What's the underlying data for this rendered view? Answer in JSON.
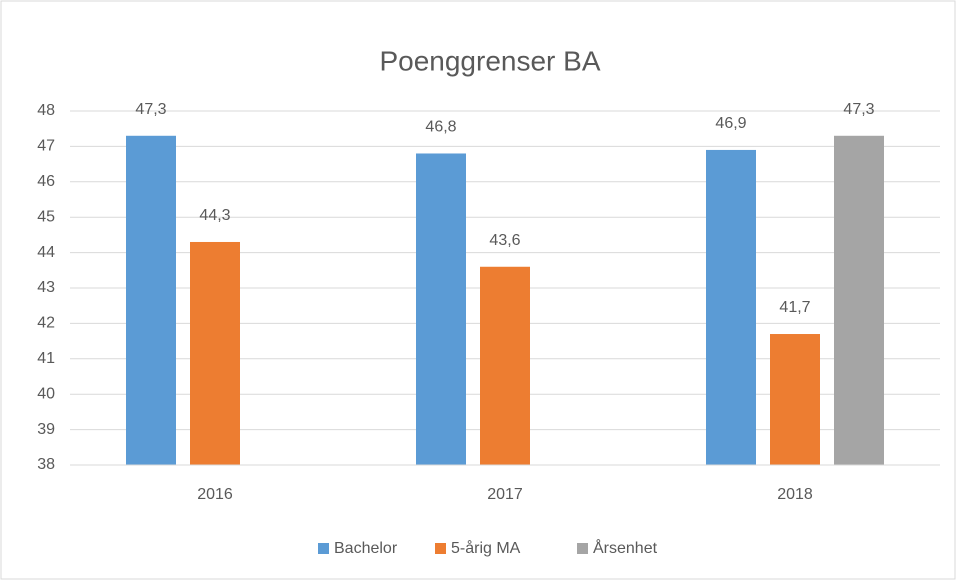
{
  "chart_data": {
    "type": "bar",
    "title": "Poenggrenser BA",
    "categories": [
      "2016",
      "2017",
      "2018"
    ],
    "series": [
      {
        "name": "Bachelor",
        "color": "#5b9bd5",
        "values": [
          47.3,
          46.8,
          46.9
        ],
        "value_labels": [
          "47,3",
          "46,8",
          "46,9"
        ]
      },
      {
        "name": "5-årig MA",
        "color": "#ed7d31",
        "values": [
          44.3,
          43.6,
          41.7
        ],
        "value_labels": [
          "44,3",
          "43,6",
          "41,7"
        ]
      },
      {
        "name": "Årsenhet",
        "color": "#a5a5a5",
        "values": [
          null,
          null,
          47.3
        ],
        "value_labels": [
          null,
          null,
          "47,3"
        ]
      }
    ],
    "ylim": [
      38,
      48
    ],
    "yticks": [
      38,
      39,
      40,
      41,
      42,
      43,
      44,
      45,
      46,
      47,
      48
    ],
    "grid": true,
    "legend": "bottom"
  }
}
